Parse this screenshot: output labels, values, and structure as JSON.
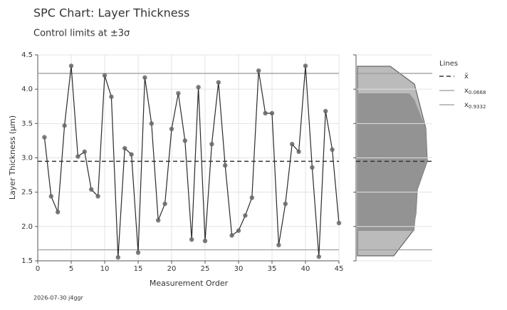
{
  "chart_data": {
    "type": "line",
    "title": "SPC Chart: Layer Thickness",
    "subtitle": "Control limits at ±3σ",
    "x_label": "Measurement Order",
    "y_label": "Layer Thickness (µm)",
    "x": [
      1,
      2,
      3,
      4,
      5,
      6,
      7,
      8,
      9,
      10,
      11,
      12,
      13,
      14,
      15,
      16,
      17,
      18,
      19,
      20,
      21,
      22,
      23,
      24,
      25,
      26,
      27,
      28,
      29,
      30,
      31,
      32,
      33,
      34,
      35,
      36,
      37,
      38,
      39,
      40,
      41,
      42,
      43,
      44,
      45
    ],
    "values": [
      3.3,
      2.44,
      2.21,
      3.47,
      4.34,
      3.02,
      3.09,
      2.54,
      2.44,
      4.2,
      3.89,
      1.55,
      3.14,
      3.05,
      1.62,
      4.17,
      3.5,
      2.09,
      2.33,
      3.42,
      3.94,
      3.25,
      1.81,
      4.03,
      1.79,
      3.2,
      4.1,
      2.89,
      1.87,
      1.94,
      2.16,
      2.42,
      4.27,
      3.65,
      3.65,
      1.73,
      2.33,
      3.2,
      3.09,
      4.34,
      2.86,
      1.56,
      3.68,
      3.12,
      2.05
    ],
    "color": "#2b2b2b",
    "marker_color": "#666666",
    "xlim": [
      0,
      45
    ],
    "xticks": [
      0,
      5,
      10,
      15,
      20,
      25,
      30,
      35,
      40,
      45
    ],
    "ylim": [
      1.5,
      4.5
    ],
    "yticks": [
      1.5,
      {
        "value": 2.0,
        "label": "2.0"
      },
      2.5,
      {
        "value": 3.0,
        "label": "3.0"
      },
      3.5,
      {
        "value": 4.0,
        "label": "4.0"
      },
      4.5
    ],
    "grid": true,
    "legend_title": "Lines",
    "reference_lines": [
      {
        "name": "x̄",
        "value": 2.95,
        "dashed": true,
        "color": "#333333"
      },
      {
        "name": "x",
        "subscript": "0.0668",
        "value": 1.66,
        "dashed": false,
        "color": "#999999"
      },
      {
        "name": "x",
        "subscript": "0.9332",
        "value": 4.23,
        "dashed": false,
        "color": "#999999"
      }
    ],
    "footer": "2026-07-30 j4ggr"
  }
}
